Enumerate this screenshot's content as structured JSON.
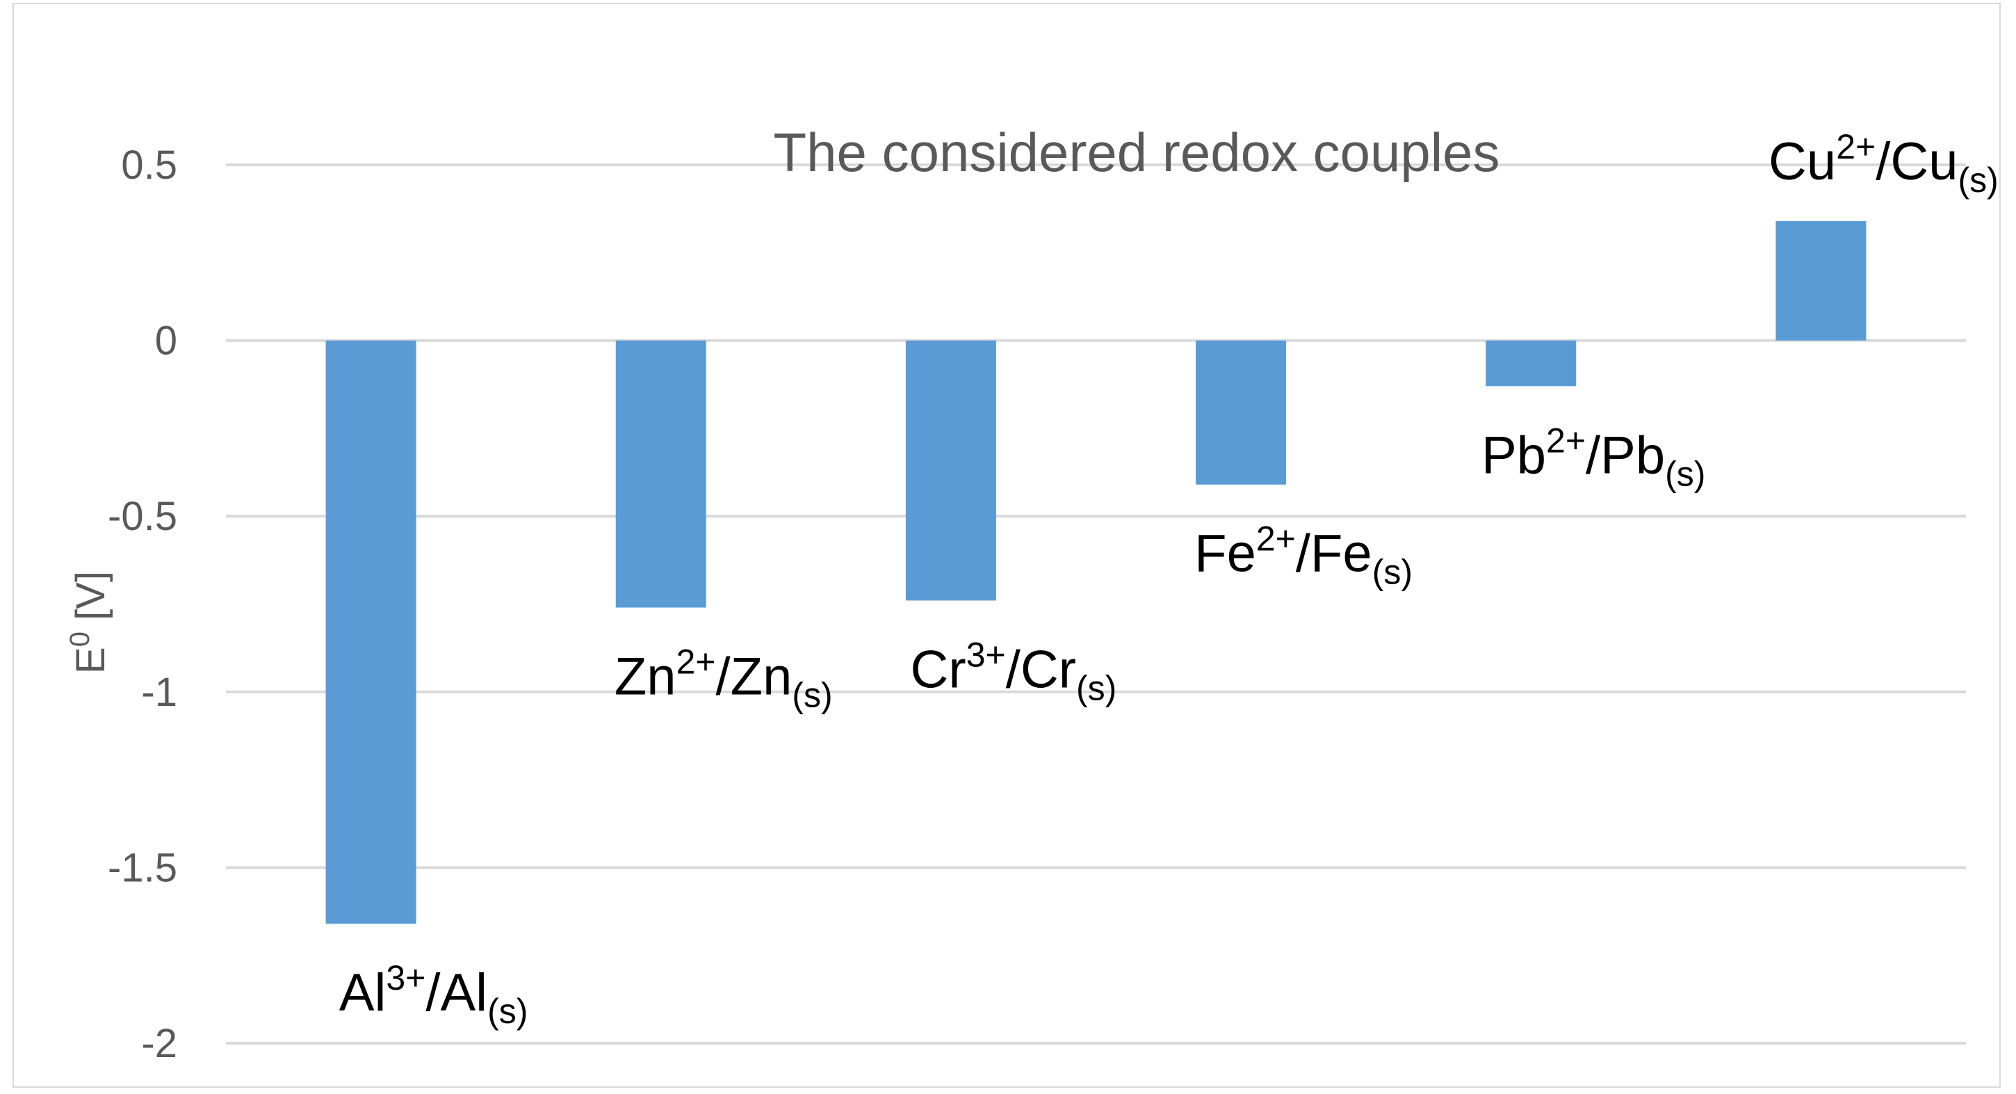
{
  "chart_data": {
    "type": "bar",
    "title": "The considered redox couples",
    "ylabel": {
      "main": "E",
      "sup": "0",
      "unit": " [V]"
    },
    "xlabel": "",
    "ylim": [
      -2,
      0.5
    ],
    "yticks": [
      0.5,
      0,
      -0.5,
      -1,
      -1.5,
      -2
    ],
    "ytick_labels": [
      "0.5",
      "0",
      "-0.5",
      "-1",
      "-1.5",
      "-2"
    ],
    "grid": true,
    "bar_color": "#5b9bd5",
    "grid_color": "#d9d9d9",
    "categories": [
      {
        "metal": "Al",
        "charge": "3+",
        "state": "(s)"
      },
      {
        "metal": "Zn",
        "charge": "2+",
        "state": "(s)"
      },
      {
        "metal": "Cr",
        "charge": "3+",
        "state": "(s)"
      },
      {
        "metal": "Fe",
        "charge": "2+",
        "state": "(s)"
      },
      {
        "metal": "Pb",
        "charge": "2+",
        "state": "(s)"
      },
      {
        "metal": "Cu",
        "charge": "2+",
        "state": "(s)"
      }
    ],
    "values": [
      -1.66,
      -0.76,
      -0.74,
      -0.41,
      -0.13,
      0.34
    ]
  }
}
